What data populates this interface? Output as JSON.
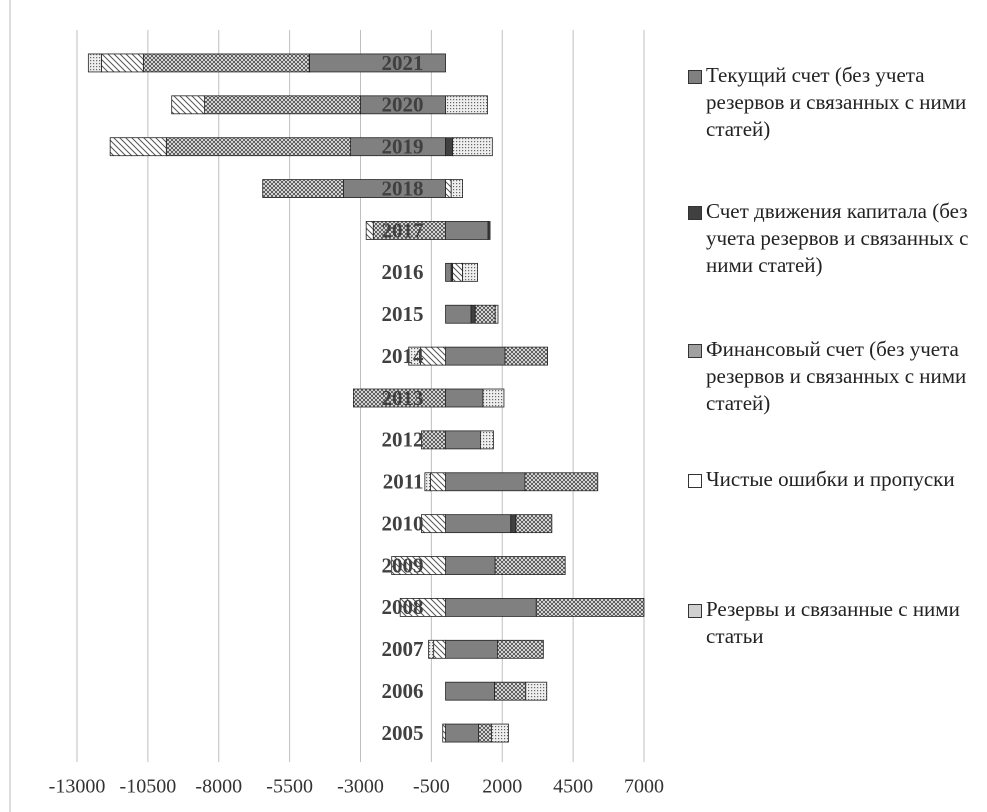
{
  "chart_data": {
    "type": "stacked-bar-horizontal",
    "categories": [
      "2005",
      "2006",
      "2007",
      "2008",
      "2009",
      "2010",
      "2011",
      "2012",
      "2013",
      "2014",
      "2015",
      "2016",
      "2017",
      "2018",
      "2019",
      "2020",
      "2021"
    ],
    "series": [
      {
        "name": "Текущий счет (без учета резервов и связанных с ними статей)",
        "color": "#808080",
        "values": [
          1160,
          1730,
          1830,
          3200,
          1750,
          2300,
          2800,
          1230,
          1320,
          2100,
          900,
          200,
          1500,
          -3600,
          -3350,
          -3000,
          -4800
        ]
      },
      {
        "name": "Счет движения капитала (без учета резервов и связанных с ними статей)",
        "color": "#404040",
        "values": [
          0,
          0,
          0,
          0,
          0,
          180,
          0,
          0,
          0,
          0,
          150,
          50,
          70,
          0,
          250,
          0,
          -10
        ]
      },
      {
        "name": "Финансовый счет (без учета резервов и связанных с ними статей)",
        "color": "#a0a0a0",
        "values": [
          460,
          1100,
          1620,
          3800,
          2470,
          1270,
          2570,
          -850,
          -3250,
          1500,
          700,
          0,
          -2550,
          -2850,
          -6500,
          -5500,
          -5850
        ]
      },
      {
        "name": "Чистые ошибки и пропуски",
        "color": "#ffffff",
        "values": [
          -100,
          0,
          -420,
          -1600,
          -1900,
          -850,
          -530,
          0,
          0,
          -880,
          0,
          350,
          -250,
          200,
          -1980,
          -1160,
          -1480
        ]
      },
      {
        "name": "Резервы и связанные с ними статьи",
        "color": "#d0d0d0",
        "values": [
          600,
          740,
          -180,
          0,
          0,
          0,
          -200,
          460,
          740,
          -420,
          100,
          530,
          0,
          400,
          1400,
          1480,
          -460
        ]
      }
    ],
    "xlim": [
      -13000,
      7000
    ],
    "xticks": [
      -13000,
      -10500,
      -8000,
      -5500,
      -3000,
      -500,
      2000,
      4500,
      7000
    ],
    "grid": true
  }
}
